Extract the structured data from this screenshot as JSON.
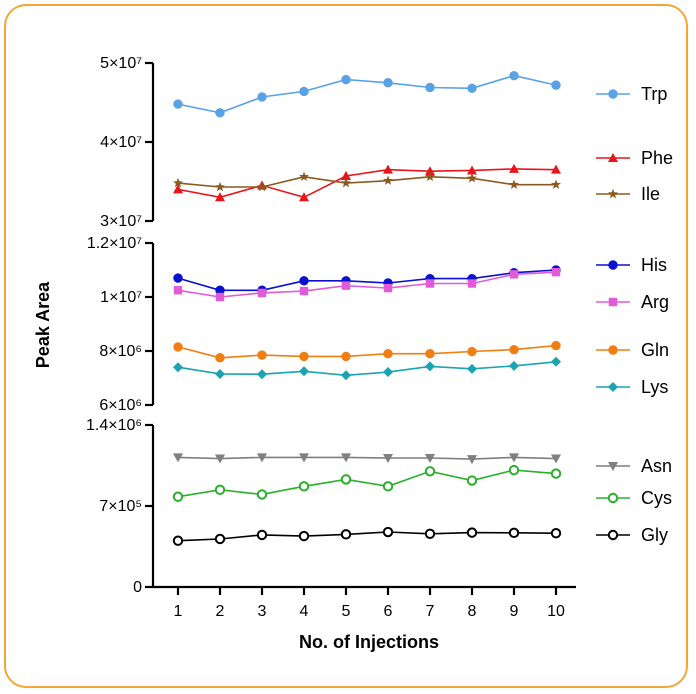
{
  "chart_data": {
    "type": "line",
    "xlabel": "No. of Injections",
    "ylabel": "Peak Area",
    "x": [
      1,
      2,
      3,
      4,
      5,
      6,
      7,
      8,
      9,
      10
    ],
    "segments": [
      {
        "name": "top",
        "ylim": [
          30000000,
          50000000
        ],
        "ticks": [
          {
            "value": 30000000,
            "label": "3×10⁷"
          },
          {
            "value": 40000000,
            "label": "4×10⁷"
          },
          {
            "value": 50000000,
            "label": "5×10⁷"
          }
        ]
      },
      {
        "name": "upper-middle",
        "ylim": [
          6000000,
          12000000
        ],
        "ticks": [
          {
            "value": 6000000,
            "label": "6×10⁶"
          },
          {
            "value": 8000000,
            "label": "8×10⁶"
          },
          {
            "value": 10000000,
            "label": "1×10⁷"
          },
          {
            "value": 12000000,
            "label": "1.2×10⁷"
          }
        ]
      },
      {
        "name": "bottom",
        "ylim": [
          0,
          1400000
        ],
        "ticks": [
          {
            "value": 0,
            "label": "0"
          },
          {
            "value": 700000,
            "label": "7×10⁵"
          },
          {
            "value": 1400000,
            "label": "1.4×10⁶"
          }
        ]
      }
    ],
    "series": [
      {
        "name": "Trp",
        "segment": 0,
        "color": "#5aa2e6",
        "marker": "circle-filled",
        "values": [
          44800000,
          43700000,
          45700000,
          46400000,
          47900000,
          47500000,
          46900000,
          46800000,
          48400000,
          47200000
        ]
      },
      {
        "name": "Phe",
        "segment": 0,
        "color": "#e8151b",
        "marker": "triangle-up",
        "values": [
          34000000,
          33000000,
          34500000,
          33000000,
          35700000,
          36500000,
          36300000,
          36400000,
          36600000,
          36500000
        ]
      },
      {
        "name": "Ile",
        "segment": 0,
        "color": "#8a5a1e",
        "marker": "star",
        "values": [
          34800000,
          34300000,
          34300000,
          35600000,
          34800000,
          35100000,
          35600000,
          35400000,
          34600000,
          34600000
        ]
      },
      {
        "name": "His",
        "segment": 1,
        "color": "#0a10d0",
        "marker": "circle-filled",
        "values": [
          10700000,
          10250000,
          10250000,
          10600000,
          10600000,
          10520000,
          10680000,
          10680000,
          10900000,
          11000000
        ]
      },
      {
        "name": "Arg",
        "segment": 1,
        "color": "#e15bd8",
        "marker": "square",
        "values": [
          10250000,
          10000000,
          10150000,
          10220000,
          10420000,
          10330000,
          10500000,
          10500000,
          10840000,
          10920000
        ]
      },
      {
        "name": "Gln",
        "segment": 1,
        "color": "#f07e10",
        "marker": "circle-filled",
        "values": [
          8150000,
          7750000,
          7850000,
          7800000,
          7800000,
          7900000,
          7900000,
          7980000,
          8050000,
          8200000
        ]
      },
      {
        "name": "Lys",
        "segment": 1,
        "color": "#1aa3b0",
        "marker": "diamond",
        "values": [
          7400000,
          7150000,
          7140000,
          7250000,
          7100000,
          7220000,
          7430000,
          7340000,
          7450000,
          7600000
        ]
      },
      {
        "name": "Asn",
        "segment": 2,
        "color": "#7f7f7f",
        "marker": "triangle-down",
        "values": [
          1120000,
          1110000,
          1120000,
          1120000,
          1120000,
          1115000,
          1115000,
          1105000,
          1120000,
          1110000
        ]
      },
      {
        "name": "Cys",
        "segment": 2,
        "color": "#29b02a",
        "marker": "circle-open",
        "values": [
          780000,
          840000,
          800000,
          870000,
          930000,
          870000,
          1000000,
          920000,
          1010000,
          980000
        ]
      },
      {
        "name": "Gly",
        "segment": 2,
        "color": "#000000",
        "marker": "circle-open",
        "values": [
          400000,
          415000,
          450000,
          440000,
          455000,
          475000,
          460000,
          470000,
          468000,
          465000
        ]
      }
    ],
    "legend_position": "right",
    "grid": false
  }
}
